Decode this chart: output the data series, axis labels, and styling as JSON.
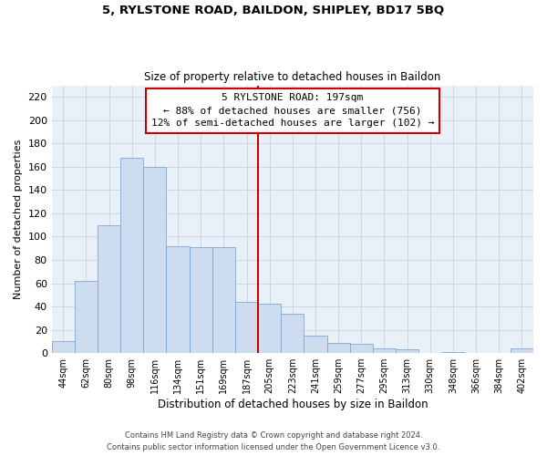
{
  "title1": "5, RYLSTONE ROAD, BAILDON, SHIPLEY, BD17 5BQ",
  "title2": "Size of property relative to detached houses in Baildon",
  "xlabel": "Distribution of detached houses by size in Baildon",
  "ylabel": "Number of detached properties",
  "bar_labels": [
    "44sqm",
    "62sqm",
    "80sqm",
    "98sqm",
    "116sqm",
    "134sqm",
    "151sqm",
    "169sqm",
    "187sqm",
    "205sqm",
    "223sqm",
    "241sqm",
    "259sqm",
    "277sqm",
    "295sqm",
    "313sqm",
    "330sqm",
    "348sqm",
    "366sqm",
    "384sqm",
    "402sqm"
  ],
  "bar_heights": [
    10,
    62,
    110,
    168,
    160,
    92,
    91,
    91,
    44,
    42,
    34,
    15,
    9,
    8,
    4,
    3,
    0,
    1,
    0,
    0,
    4
  ],
  "bar_color": "#cddcef",
  "bar_edge_color": "#7fa8d0",
  "vline_x": 8.5,
  "vline_color": "#cc0000",
  "annotation_title": "5 RYLSTONE ROAD: 197sqm",
  "annotation_line1": "← 88% of detached houses are smaller (756)",
  "annotation_line2": "12% of semi-detached houses are larger (102) →",
  "annotation_box_color": "#ffffff",
  "annotation_box_edge": "#cc0000",
  "ylim": [
    0,
    230
  ],
  "yticks": [
    0,
    20,
    40,
    60,
    80,
    100,
    120,
    140,
    160,
    180,
    200,
    220
  ],
  "footer1": "Contains HM Land Registry data © Crown copyright and database right 2024.",
  "footer2": "Contains public sector information licensed under the Open Government Licence v3.0.",
  "grid_color": "#c8d8e8",
  "bg_color": "#eaf0f8",
  "fig_bg_color": "#ffffff"
}
